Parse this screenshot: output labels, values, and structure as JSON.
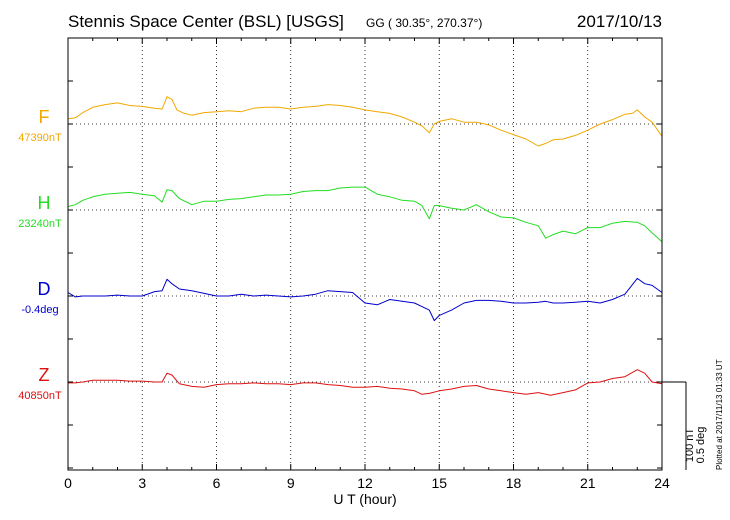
{
  "header": {
    "title": "Stennis Space Center (BSL)  [USGS]",
    "coords": "GG ( 30.35°, 270.37°)",
    "date": "2017/10/13"
  },
  "footer": {
    "plotted": "Plotted at 2017/11/13 01:33 UT"
  },
  "scale_bar": {
    "nt": "100 nT",
    "deg": "0.5 deg"
  },
  "colors": {
    "F": "#f0a800",
    "H": "#22dd22",
    "D": "#0000cc",
    "Z": "#dd1111"
  },
  "chart_data": {
    "type": "line",
    "xlabel": "U T (hour)",
    "xlim": [
      0,
      24
    ],
    "xticks": [
      "0",
      "3",
      "6",
      "9",
      "12",
      "15",
      "18",
      "21",
      "24"
    ],
    "grid": true,
    "series": [
      {
        "name": "F",
        "baseline_label": "47390nT",
        "baseline": 47390,
        "unit": "nT",
        "x": [
          0,
          0.3,
          0.6,
          1,
          1.5,
          2,
          2.5,
          3,
          3.5,
          3.8,
          4,
          4.2,
          4.4,
          4.7,
          5,
          5.5,
          6,
          6.5,
          7,
          7.5,
          8,
          8.5,
          9,
          9.5,
          10,
          10.5,
          11,
          11.5,
          12,
          12.5,
          13,
          13.5,
          14,
          14.3,
          14.6,
          14.8,
          15,
          15.5,
          16,
          16.5,
          17,
          17.5,
          18,
          18.5,
          19,
          19.3,
          19.6,
          20,
          20.5,
          21,
          21.5,
          22,
          22.5,
          22.8,
          23,
          23.3,
          23.6,
          24
        ],
        "values": [
          47396,
          47397,
          47403,
          47409,
          47412,
          47414,
          47411,
          47410,
          47408,
          47407,
          47421,
          47418,
          47406,
          47402,
          47400,
          47403,
          47404,
          47405,
          47404,
          47408,
          47409,
          47409,
          47407,
          47409,
          47410,
          47412,
          47411,
          47409,
          47406,
          47404,
          47402,
          47398,
          47392,
          47388,
          47380,
          47390,
          47393,
          47396,
          47392,
          47392,
          47389,
          47383,
          47378,
          47373,
          47365,
          47368,
          47372,
          47373,
          47377,
          47383,
          47390,
          47395,
          47401,
          47402,
          47406,
          47398,
          47392,
          47376
        ]
      },
      {
        "name": "H",
        "baseline_label": "23240nT",
        "baseline": 23240,
        "unit": "nT",
        "x": [
          0,
          0.3,
          0.6,
          1,
          1.5,
          2,
          2.5,
          3,
          3.5,
          3.8,
          4,
          4.2,
          4.5,
          5,
          5.5,
          6,
          6.5,
          7,
          7.5,
          8,
          8.5,
          9,
          9.5,
          10,
          10.5,
          11,
          11.5,
          12,
          12.5,
          13,
          13.5,
          14,
          14.3,
          14.6,
          14.8,
          15,
          15.5,
          16,
          16.5,
          17,
          17.5,
          18,
          18.5,
          19,
          19.3,
          19.6,
          20,
          20.5,
          21,
          21.5,
          22,
          22.5,
          23,
          23.3,
          23.6,
          24
        ],
        "values": [
          23244,
          23246,
          23251,
          23255,
          23258,
          23259,
          23260,
          23258,
          23256,
          23249,
          23263,
          23262,
          23253,
          23246,
          23250,
          23250,
          23252,
          23253,
          23255,
          23257,
          23257,
          23258,
          23261,
          23262,
          23262,
          23265,
          23266,
          23266,
          23258,
          23255,
          23251,
          23250,
          23245,
          23230,
          23245,
          23245,
          23242,
          23240,
          23246,
          23238,
          23232,
          23231,
          23226,
          23222,
          23208,
          23212,
          23216,
          23213,
          23220,
          23220,
          23225,
          23227,
          23226,
          23222,
          23214,
          23204
        ]
      },
      {
        "name": "D",
        "baseline_label": "-0.4deg",
        "baseline": -0.4,
        "unit": "deg",
        "x": [
          0,
          0.3,
          0.6,
          1,
          1.5,
          2,
          2.5,
          3,
          3.5,
          3.8,
          4,
          4.2,
          4.5,
          5,
          5.5,
          6,
          6.5,
          7,
          7.5,
          8,
          8.5,
          9,
          9.5,
          10,
          10.5,
          11,
          11.5,
          12,
          12.5,
          13,
          13.5,
          14,
          14.3,
          14.6,
          14.8,
          15,
          15.5,
          16,
          16.5,
          17,
          17.5,
          18,
          18.5,
          19,
          19.3,
          19.6,
          20,
          20.5,
          21,
          21.5,
          22,
          22.5,
          23,
          23.3,
          23.6,
          24
        ],
        "values": [
          -0.38,
          -0.405,
          -0.4,
          -0.4,
          -0.4,
          -0.395,
          -0.4,
          -0.4,
          -0.375,
          -0.37,
          -0.305,
          -0.33,
          -0.36,
          -0.37,
          -0.385,
          -0.4,
          -0.4,
          -0.39,
          -0.4,
          -0.395,
          -0.4,
          -0.405,
          -0.4,
          -0.39,
          -0.37,
          -0.375,
          -0.38,
          -0.44,
          -0.45,
          -0.42,
          -0.43,
          -0.44,
          -0.46,
          -0.48,
          -0.54,
          -0.51,
          -0.48,
          -0.44,
          -0.425,
          -0.425,
          -0.43,
          -0.44,
          -0.44,
          -0.435,
          -0.43,
          -0.44,
          -0.44,
          -0.435,
          -0.43,
          -0.44,
          -0.42,
          -0.39,
          -0.3,
          -0.33,
          -0.34,
          -0.38
        ]
      },
      {
        "name": "Z",
        "baseline_label": "40850nT",
        "baseline": 40850,
        "unit": "nT",
        "x": [
          0,
          0.3,
          0.6,
          1,
          1.5,
          2,
          2.5,
          3,
          3.5,
          3.8,
          4,
          4.2,
          4.5,
          5,
          5.5,
          6,
          6.5,
          7,
          7.5,
          8,
          8.5,
          9,
          9.5,
          10,
          10.5,
          11,
          11.5,
          12,
          12.5,
          13,
          13.5,
          14,
          14.3,
          14.6,
          15,
          15.5,
          16,
          16.5,
          17,
          17.5,
          18,
          18.5,
          19,
          19.5,
          20,
          20.5,
          21,
          21.5,
          22,
          22.5,
          23,
          23.3,
          23.6,
          24
        ],
        "values": [
          40849,
          40849,
          40850,
          40852,
          40852,
          40852,
          40851,
          40851,
          40850,
          40850,
          40860,
          40858,
          40848,
          40845,
          40844,
          40847,
          40848,
          40848,
          40849,
          40848,
          40848,
          40847,
          40849,
          40849,
          40847,
          40846,
          40844,
          40844,
          40845,
          40843,
          40842,
          40840,
          40836,
          40837,
          40840,
          40842,
          40845,
          40846,
          40842,
          40840,
          40838,
          40836,
          40838,
          40835,
          40838,
          40841,
          40849,
          40850,
          40854,
          40856,
          40864,
          40860,
          40850,
          40848
        ]
      }
    ]
  }
}
